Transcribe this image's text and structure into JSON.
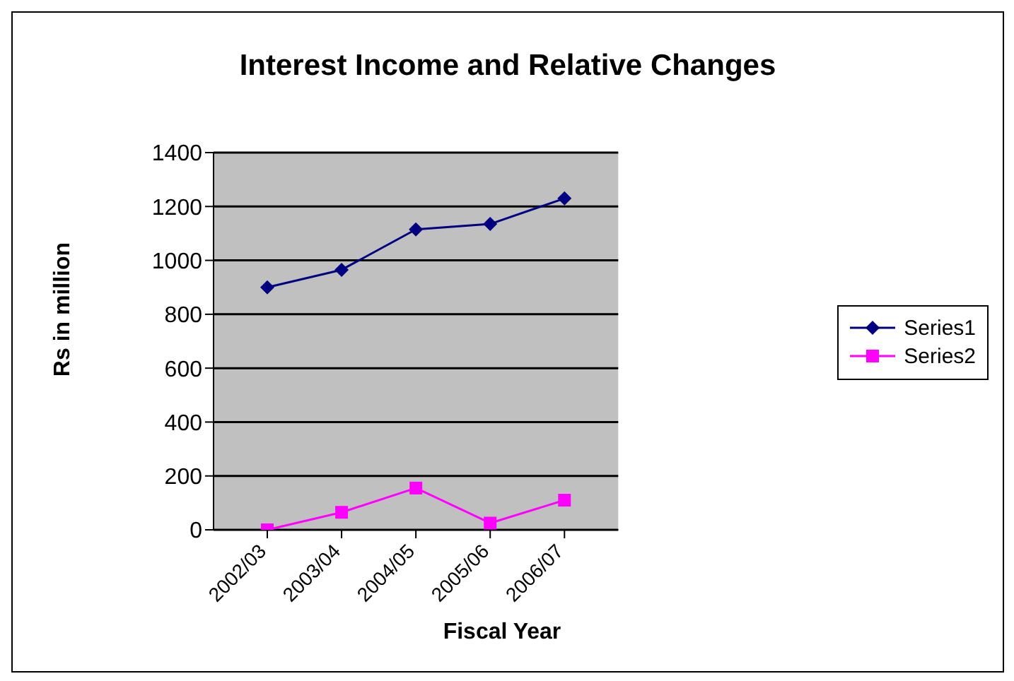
{
  "chart_data": {
    "type": "line",
    "title": "Interest Income and Relative Changes",
    "xlabel": "Fiscal Year",
    "ylabel": "Rs in million",
    "categories": [
      "2002/03",
      "2003/04",
      "2004/05",
      "2005/06",
      "2006/07"
    ],
    "series": [
      {
        "name": "Series1",
        "color": "#000080",
        "marker": "diamond",
        "values": [
          900,
          965,
          1115,
          1135,
          1230
        ]
      },
      {
        "name": "Series2",
        "color": "#ff00ff",
        "marker": "square",
        "values": [
          0,
          65,
          155,
          25,
          110
        ]
      }
    ],
    "ylim": [
      0,
      1400
    ],
    "yticks": [
      0,
      200,
      400,
      600,
      800,
      1000,
      1200,
      1400
    ],
    "grid": "y",
    "legend": "right",
    "line_style": "solid"
  }
}
